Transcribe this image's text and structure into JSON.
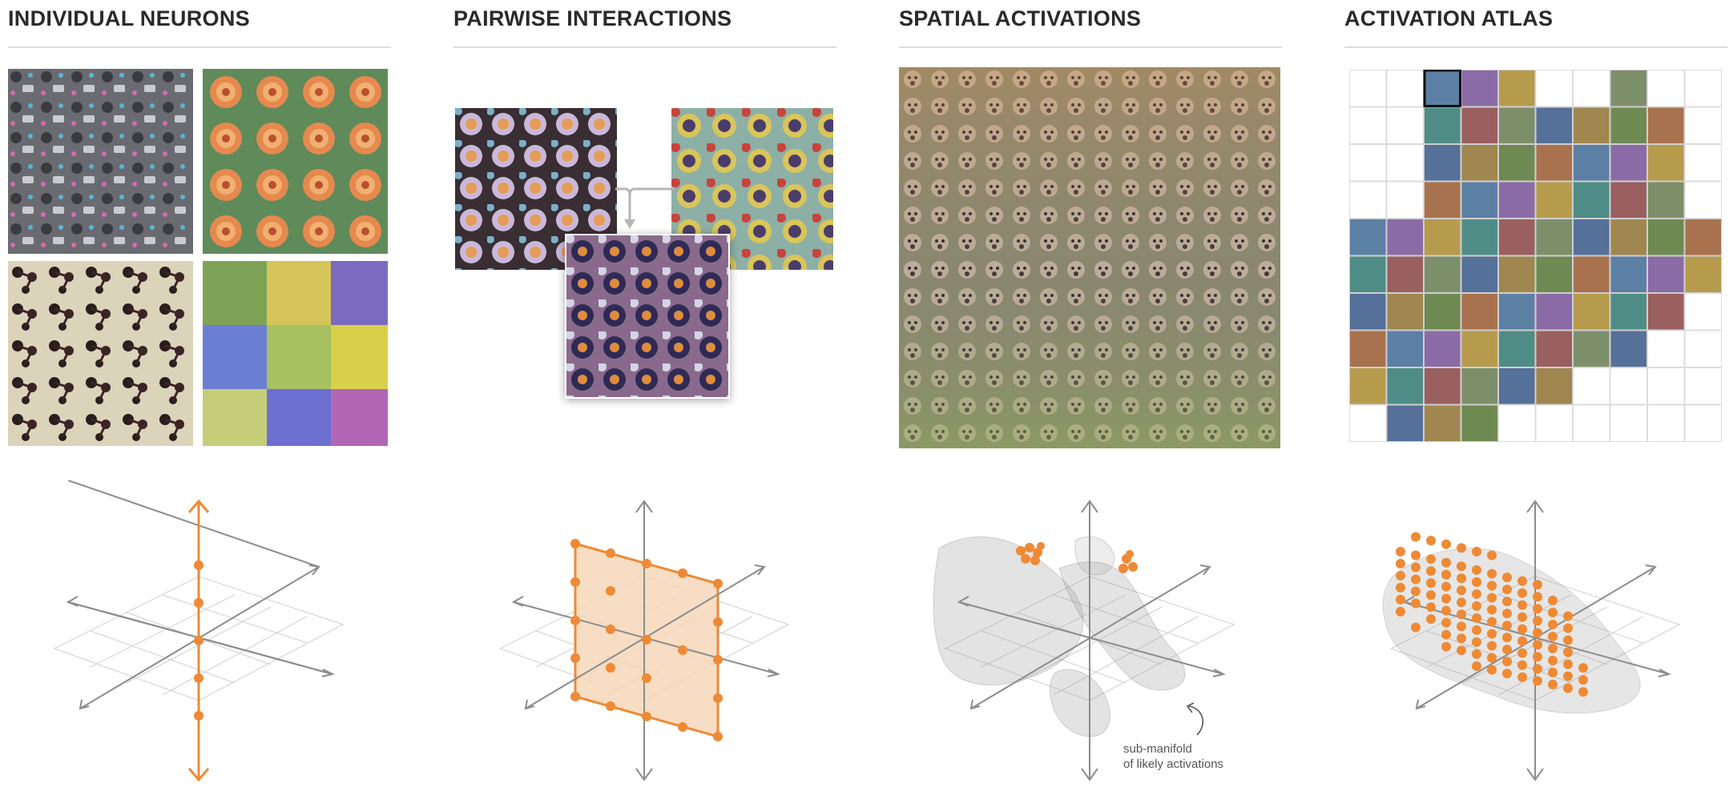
{
  "columns": [
    {
      "id": "neurons",
      "title": "INDIVIDUAL NEURONS"
    },
    {
      "id": "pairwise",
      "title": "PAIRWISE INTERACTIONS"
    },
    {
      "id": "spatial",
      "title": "SPATIAL ACTIVATIONS"
    },
    {
      "id": "atlas",
      "title": "ACTIVATION ATLAS"
    }
  ],
  "annotation": {
    "line1": "sub-manifold",
    "line2": "of likely activations"
  },
  "colors": {
    "accent": "#ee8a35",
    "accent_fill": "#f6d7b8",
    "axis": "#8c8c8c",
    "grid": "#cfcfcf",
    "rule": "#dcdcdc"
  },
  "icons": [
    "axis-arrow",
    "merge-arrow",
    "annotation-curved-arrow"
  ]
}
